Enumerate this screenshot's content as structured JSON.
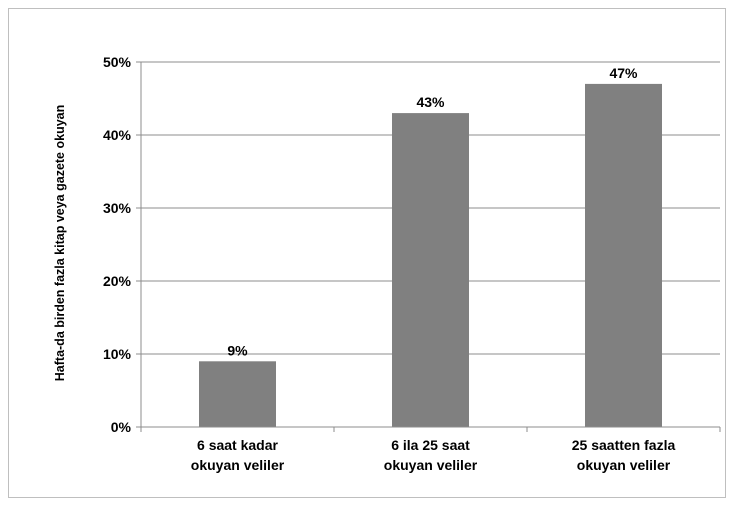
{
  "chart_data": {
    "type": "bar",
    "categories": [
      [
        "6 saat kadar",
        "okuyan veliler"
      ],
      [
        "6 ila 25 saat",
        "okuyan veliler"
      ],
      [
        "25 saatten fazla",
        "okuyan veliler"
      ]
    ],
    "values": [
      9,
      43,
      47
    ],
    "value_labels": [
      "9%",
      "43%",
      "47%"
    ],
    "ylabel": "Hafta-da birden fazla kitap veya gazete okuyan",
    "ylim": [
      0,
      50
    ],
    "y_ticks": [
      0,
      10,
      20,
      30,
      40,
      50
    ],
    "y_tick_labels": [
      "0%",
      "10%",
      "20%",
      "30%",
      "40%",
      "50%"
    ],
    "grid": true,
    "legend": "none",
    "bar_color": "#808080"
  }
}
